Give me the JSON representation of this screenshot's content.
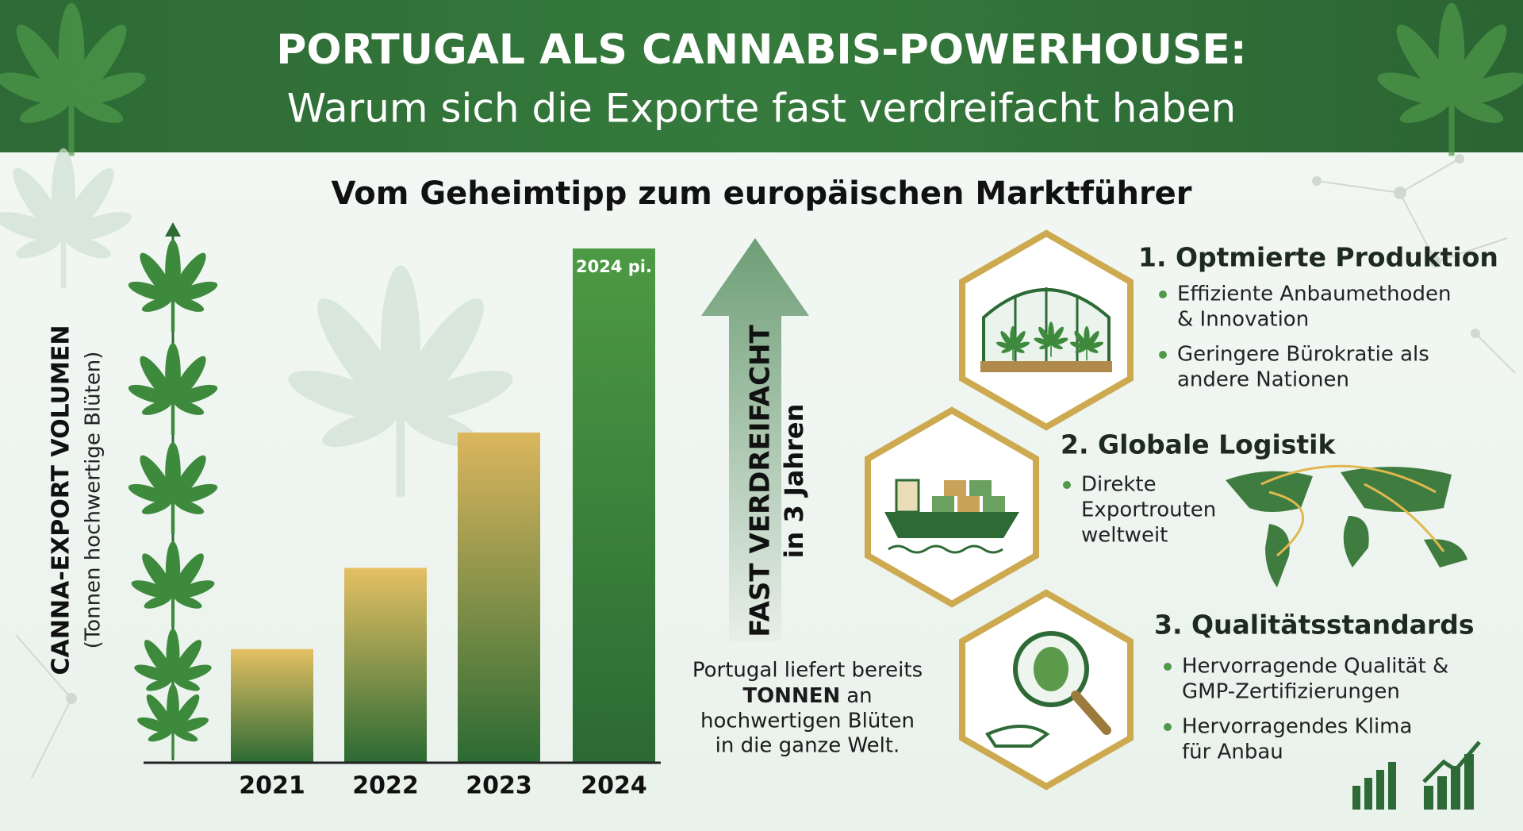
{
  "header": {
    "title": "PORTUGAL ALS CANNABIS-POWERHOUSE:",
    "subtitle": "Warum sich die Exporte fast verdreifacht haben"
  },
  "section_title": "Vom Geheimtipp zum europäischen Marktführer",
  "chart_data": {
    "type": "bar",
    "y_label": "CANNA-EXPORT VOLUMEN",
    "y_sublabel": "(Tonnen hochwertige Blüten)",
    "categories": [
      "2021",
      "2022",
      "2023",
      "2024"
    ],
    "values": [
      21,
      36,
      61,
      95
    ],
    "ylim": [
      0,
      100
    ],
    "bar_colors_top": [
      "#e5c064",
      "#e5c064",
      "#dcb65e",
      "#4d9a44"
    ],
    "bar_color_bottom": "#2b6a33",
    "annotation": "2024 pi."
  },
  "growth_arrow": {
    "label": "FAST VERDREIFACHT",
    "sublabel": "in 3 Jahren"
  },
  "note": {
    "line1": "Portugal liefert bereits",
    "emphasis": "TONNEN",
    "line2": "an",
    "line3": "hochwertigen Blüten",
    "line4": "in die ganze Welt."
  },
  "factors": [
    {
      "title": "1. Optmierte Produktion",
      "bullets": [
        [
          "Effiziente Anbaumethoden",
          "& Innovation"
        ],
        [
          "Geringere Bürokratie als",
          "andere Nationen"
        ]
      ]
    },
    {
      "title": "2. Globale Logistik",
      "bullets": [
        [
          "Direkte",
          "Exportrouten",
          "weltweit"
        ]
      ]
    },
    {
      "title": "3. Qualitätsstandards",
      "bullets": [
        [
          "Hervorragende Qualität &",
          "GMP-Zertifizierungen"
        ],
        [
          "Hervorragendes Klima",
          "für Anbau"
        ]
      ]
    }
  ]
}
